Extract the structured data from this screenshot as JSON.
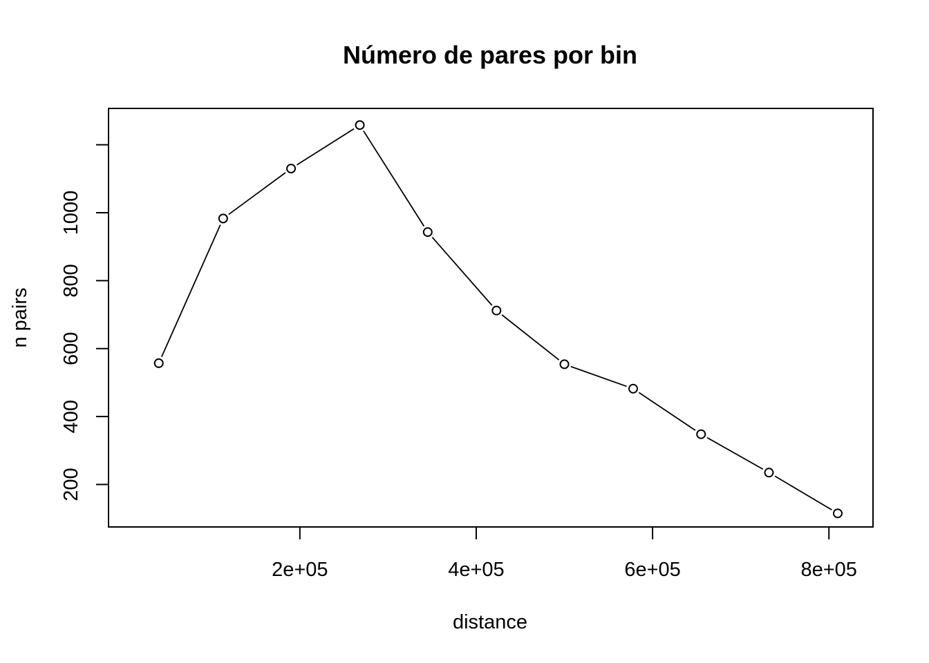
{
  "chart_data": {
    "type": "line",
    "title": "Número de pares por bin",
    "xlabel": "distance",
    "ylabel": "n pairs",
    "x": [
      40000,
      113000,
      190000,
      268000,
      345000,
      423000,
      500000,
      578000,
      655000,
      732000,
      810000
    ],
    "series": [
      {
        "values": [
          557,
          983,
          1130,
          1258,
          943,
          712,
          554,
          482,
          348,
          235,
          115
        ]
      }
    ],
    "xlim": [
      -17000,
      850000
    ],
    "ylim": [
      75,
      1307
    ],
    "x_ticks": [
      200000,
      400000,
      600000,
      800000
    ],
    "x_tick_labels": [
      "2e+05",
      "4e+05",
      "6e+05",
      "8e+05"
    ],
    "y_ticks": [
      200,
      400,
      600,
      800,
      1000,
      1200
    ],
    "y_tick_labels": [
      "200",
      "400",
      "600",
      "800",
      "1000",
      ""
    ],
    "markers": "open-circle",
    "grid": false,
    "legend": "none",
    "colors": {
      "line": "#000000",
      "background": "#ffffff"
    }
  }
}
